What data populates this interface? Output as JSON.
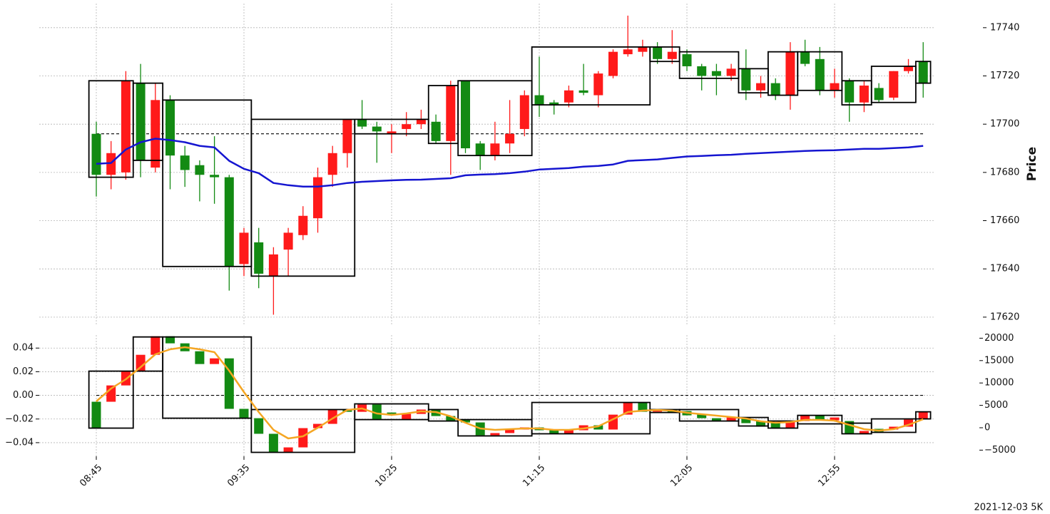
{
  "caption": "2021-12-03 5K",
  "chart_data": [
    {
      "type": "candlestick",
      "ylabel": "Price",
      "up_color": "#ff1a1a",
      "down_color": "#138a13",
      "box_color": "#000000",
      "grid": true,
      "ylim": [
        17617,
        17750
      ],
      "yticks": [
        17620,
        17640,
        17660,
        17680,
        17700,
        17720,
        17740
      ],
      "open": [
        17696,
        17679,
        17680,
        17717,
        17682,
        17710,
        17687,
        17683,
        17679,
        17678,
        17642,
        17651,
        17637,
        17648,
        17654,
        17661,
        17679,
        17688,
        17702,
        17699,
        17696,
        17698,
        17700,
        17701,
        17693,
        17718,
        17692,
        17687,
        17692,
        17698,
        17712,
        17709,
        17709,
        17714,
        17712,
        17720,
        17729,
        17730,
        17732,
        17727,
        17729,
        17724,
        17722,
        17720,
        17723,
        17714,
        17717,
        17712,
        17730,
        17727,
        17714,
        17718,
        17709,
        17715,
        17711,
        17722,
        17726
      ],
      "close": [
        17679,
        17688,
        17718,
        17685,
        17710,
        17687,
        17681,
        17679,
        17678,
        17641,
        17655,
        17638,
        17646,
        17655,
        17662,
        17678,
        17688,
        17702,
        17699,
        17697,
        17697,
        17700,
        17702,
        17693,
        17716,
        17690,
        17687,
        17692,
        17696,
        17712,
        17708,
        17708,
        17714,
        17713,
        17721,
        17730,
        17731,
        17732,
        17727,
        17730,
        17724,
        17720,
        17720,
        17723,
        17714,
        17717,
        17712,
        17730,
        17725,
        17714,
        17717,
        17709,
        17716,
        17710,
        17722,
        17724,
        17717
      ],
      "high": [
        17701,
        17693,
        17722,
        17725,
        17717,
        17712,
        17691,
        17685,
        17695,
        17679,
        17657,
        17657,
        17649,
        17657,
        17666,
        17682,
        17691,
        17702,
        17710,
        17701,
        17700,
        17705,
        17706,
        17704,
        17718,
        17718,
        17693,
        17701,
        17710,
        17714,
        17728,
        17710,
        17716,
        17725,
        17722,
        17731,
        17745,
        17735,
        17734,
        17739,
        17731,
        17725,
        17725,
        17725,
        17731,
        17720,
        17719,
        17734,
        17735,
        17732,
        17723,
        17719,
        17718,
        17717,
        17722,
        17727,
        17734
      ],
      "low": [
        17670,
        17673,
        17677,
        17678,
        17680,
        17673,
        17674,
        17668,
        17667,
        17631,
        17637,
        17632,
        17621,
        17637,
        17652,
        17655,
        17674,
        17682,
        17698,
        17684,
        17688,
        17695,
        17698,
        17692,
        17679,
        17688,
        17681,
        17685,
        17688,
        17695,
        17703,
        17704,
        17707,
        17712,
        17707,
        17719,
        17728,
        17728,
        17725,
        17725,
        17722,
        17714,
        17712,
        17718,
        17710,
        17711,
        17710,
        17706,
        17724,
        17712,
        17711,
        17701,
        17705,
        17709,
        17710,
        17721,
        17711
      ],
      "boxes": [
        {
          "start": 0,
          "end": 2,
          "high": 17718,
          "low": 17678
        },
        {
          "start": 3,
          "end": 4,
          "high": 17717,
          "low": 17685
        },
        {
          "start": 5,
          "end": 10,
          "high": 17710,
          "low": 17641
        },
        {
          "start": 11,
          "end": 17,
          "high": 17702,
          "low": 17637
        },
        {
          "start": 18,
          "end": 22,
          "high": 17702,
          "low": 17696
        },
        {
          "start": 23,
          "end": 24,
          "high": 17716,
          "low": 17692
        },
        {
          "start": 25,
          "end": 29,
          "high": 17718,
          "low": 17687
        },
        {
          "start": 30,
          "end": 37,
          "high": 17732,
          "low": 17708
        },
        {
          "start": 38,
          "end": 39,
          "high": 17732,
          "low": 17726
        },
        {
          "start": 40,
          "end": 43,
          "high": 17730,
          "low": 17719
        },
        {
          "start": 44,
          "end": 45,
          "high": 17723,
          "low": 17713
        },
        {
          "start": 46,
          "end": 47,
          "high": 17730,
          "low": 17712
        },
        {
          "start": 48,
          "end": 50,
          "high": 17730,
          "low": 17714
        },
        {
          "start": 51,
          "end": 52,
          "high": 17718,
          "low": 17708
        },
        {
          "start": 53,
          "end": 55,
          "high": 17724,
          "low": 17709
        },
        {
          "start": 56,
          "end": 56,
          "high": 17726,
          "low": 17717
        }
      ],
      "hline": 17696,
      "series": [
        {
          "color": "#1515d0",
          "values": [
            17683.6,
            17683.9,
            17689.5,
            17692.5,
            17694,
            17693.4,
            17692.5,
            17691,
            17690.4,
            17684.8,
            17681.5,
            17679.7,
            17675.6,
            17674.7,
            17674.1,
            17674.1,
            17674.7,
            17675.6,
            17676.1,
            17676.4,
            17676.7,
            17676.9,
            17677,
            17677.3,
            17677.6,
            17678.8,
            17679.1,
            17679.3,
            17679.7,
            17680.3,
            17681.2,
            17681.5,
            17681.8,
            17682.4,
            17682.7,
            17683.3,
            17684.8,
            17685.1,
            17685.4,
            17686,
            17686.6,
            17686.8,
            17687.1,
            17687.3,
            17687.7,
            17688,
            17688.3,
            17688.6,
            17688.9,
            17689.1,
            17689.2,
            17689.5,
            17689.8,
            17689.8,
            17690.1,
            17690.4,
            17691
          ]
        }
      ]
    },
    {
      "type": "candlestick",
      "up_color": "#ff1a1a",
      "down_color": "#138a13",
      "box_color": "#000000",
      "grid": true,
      "categories": [
        "08:45",
        null,
        null,
        null,
        null,
        null,
        null,
        null,
        null,
        null,
        "09:35",
        null,
        null,
        null,
        null,
        null,
        null,
        null,
        null,
        null,
        "10:25",
        null,
        null,
        null,
        null,
        null,
        null,
        null,
        null,
        null,
        "11:15",
        null,
        null,
        null,
        null,
        null,
        null,
        null,
        null,
        null,
        "12:05",
        null,
        null,
        null,
        null,
        null,
        null,
        null,
        null,
        null,
        "12:55",
        null,
        null,
        null,
        null,
        null,
        null
      ],
      "ylim": [
        -0.0515,
        0.051
      ],
      "yticks": [
        {
          "value": -0.04,
          "label": "−0.04"
        },
        {
          "value": -0.02,
          "label": "−0.02"
        },
        {
          "value": 0,
          "label": "0.00"
        },
        0.02,
        0.04
      ],
      "y2lim": [
        -6370,
        20700
      ],
      "y2ticks": [
        {
          "value": -5000,
          "label": "−5000"
        },
        0,
        5000,
        10000,
        15000,
        20000
      ],
      "open": [
        -0.0054,
        -0.0054,
        0.0084,
        0.0205,
        0.0343,
        0.05,
        0.044,
        0.0373,
        0.0265,
        0.0313,
        -0.0114,
        -0.0193,
        -0.0325,
        -0.0482,
        -0.044,
        -0.0277,
        -0.0241,
        -0.012,
        -0.0139,
        -0.0078,
        -0.0145,
        -0.0205,
        -0.0157,
        -0.012,
        -0.0175,
        -0.0205,
        -0.0229,
        -0.0337,
        -0.0319,
        -0.0289,
        -0.0271,
        -0.0295,
        -0.0325,
        -0.0295,
        -0.0253,
        -0.0289,
        -0.0163,
        -0.006,
        -0.0139,
        -0.012,
        -0.0133,
        -0.0157,
        -0.0193,
        -0.0217,
        -0.0187,
        -0.0217,
        -0.0229,
        -0.0277,
        -0.0217,
        -0.0169,
        -0.0211,
        -0.0217,
        -0.0325,
        -0.0283,
        -0.0289,
        -0.0265,
        -0.0199
      ],
      "close": [
        -0.0277,
        0.0084,
        0.0205,
        0.0343,
        0.05,
        0.044,
        0.0373,
        0.0265,
        0.0313,
        -0.0114,
        -0.0193,
        -0.0325,
        -0.0482,
        -0.044,
        -0.0277,
        -0.0241,
        -0.012,
        -0.0139,
        -0.0078,
        -0.0205,
        -0.0157,
        -0.0157,
        -0.012,
        -0.0175,
        -0.0217,
        -0.0229,
        -0.0337,
        -0.0319,
        -0.0289,
        -0.0271,
        -0.0295,
        -0.0325,
        -0.0295,
        -0.0253,
        -0.0289,
        -0.0163,
        -0.006,
        -0.0139,
        -0.012,
        -0.0145,
        -0.0169,
        -0.0193,
        -0.0217,
        -0.0187,
        -0.0235,
        -0.0265,
        -0.0277,
        -0.0217,
        -0.0169,
        -0.0211,
        -0.0187,
        -0.0325,
        -0.0301,
        -0.0307,
        -0.0265,
        -0.0205,
        -0.0139
      ],
      "boxes": [
        {
          "start": 0,
          "end": 2,
          "high": 0.0205,
          "low": -0.0277
        },
        {
          "start": 3,
          "end": 4,
          "high": 0.0494,
          "low": 0.0205
        },
        {
          "start": 5,
          "end": 10,
          "high": 0.0494,
          "low": -0.0193
        },
        {
          "start": 11,
          "end": 17,
          "high": -0.012,
          "low": -0.0482
        },
        {
          "start": 18,
          "end": 22,
          "high": -0.0072,
          "low": -0.0205
        },
        {
          "start": 23,
          "end": 24,
          "high": -0.012,
          "low": -0.0217
        },
        {
          "start": 25,
          "end": 29,
          "high": -0.0205,
          "low": -0.0343
        },
        {
          "start": 30,
          "end": 37,
          "high": -0.006,
          "low": -0.0325
        },
        {
          "start": 38,
          "end": 39,
          "high": -0.012,
          "low": -0.0145
        },
        {
          "start": 40,
          "end": 43,
          "high": -0.012,
          "low": -0.0217
        },
        {
          "start": 44,
          "end": 45,
          "high": -0.0187,
          "low": -0.0259
        },
        {
          "start": 46,
          "end": 47,
          "high": -0.0217,
          "low": -0.0277
        },
        {
          "start": 48,
          "end": 50,
          "high": -0.0169,
          "low": -0.0241
        },
        {
          "start": 51,
          "end": 52,
          "high": -0.0235,
          "low": -0.0325
        },
        {
          "start": 53,
          "end": 55,
          "high": -0.0199,
          "low": -0.0313
        },
        {
          "start": 56,
          "end": 56,
          "high": -0.0139,
          "low": -0.0199
        }
      ],
      "hline": 0,
      "series": [
        {
          "color": "#f5a623",
          "axis": "y2",
          "values": [
            5890,
            8760,
            10830,
            13530,
            16400,
            17510,
            17990,
            17510,
            16880,
            12740,
            7960,
            3500,
            -480,
            -2390,
            -1910,
            0,
            2070,
            3980,
            4300,
            3180,
            2870,
            3180,
            3660,
            3500,
            2550,
            1110,
            -160,
            -480,
            -320,
            -160,
            -160,
            -480,
            -480,
            -160,
            320,
            1910,
            3500,
            3820,
            3980,
            3820,
            3340,
            3030,
            2710,
            2390,
            2070,
            1430,
            1110,
            1270,
            1750,
            1750,
            1590,
            640,
            -320,
            -640,
            -320,
            640,
            1910
          ]
        }
      ]
    }
  ]
}
